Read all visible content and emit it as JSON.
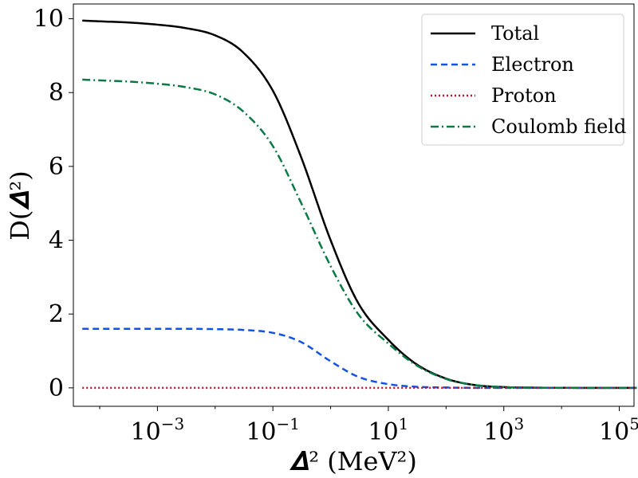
{
  "chart_data": {
    "type": "line",
    "xlabel": "𝜟² (MeV²)",
    "ylabel": "D(𝜟²)",
    "x_scale": "log",
    "xlim": [
      3.5e-05,
      180000.0
    ],
    "ylim": [
      -0.5,
      10.4
    ],
    "x_ticks": [
      {
        "value": 0.001,
        "base": "10",
        "exp": "−3"
      },
      {
        "value": 0.1,
        "base": "10",
        "exp": "−1"
      },
      {
        "value": 10,
        "base": "10",
        "exp": "1"
      },
      {
        "value": 1000,
        "base": "10",
        "exp": "3"
      },
      {
        "value": 100000,
        "base": "10",
        "exp": "5"
      }
    ],
    "y_ticks": [
      {
        "value": 0,
        "label": "0"
      },
      {
        "value": 2,
        "label": "2"
      },
      {
        "value": 4,
        "label": "4"
      },
      {
        "value": 6,
        "label": "6"
      },
      {
        "value": 8,
        "label": "8"
      },
      {
        "value": 10,
        "label": "10"
      }
    ],
    "grid": false,
    "legend_position": "top-right",
    "x": [
      5e-05,
      0.0001,
      0.0003,
      0.001,
      0.003,
      0.01,
      0.03,
      0.1,
      0.3,
      1,
      3,
      10,
      30,
      100,
      300,
      1000,
      3000,
      10000,
      100000,
      200000
    ],
    "series": [
      {
        "name": "Total",
        "color": "#000000",
        "dash": "solid",
        "values": [
          9.95,
          9.93,
          9.9,
          9.84,
          9.75,
          9.55,
          9.1,
          8.05,
          6.3,
          4.0,
          2.3,
          1.3,
          0.65,
          0.25,
          0.08,
          0.02,
          0.006,
          0.001,
          0.0,
          0.0
        ]
      },
      {
        "name": "Electron",
        "color": "#1352e8",
        "dash": "dashed",
        "values": [
          1.6,
          1.6,
          1.6,
          1.6,
          1.6,
          1.59,
          1.57,
          1.49,
          1.25,
          0.72,
          0.3,
          0.1,
          0.03,
          0.01,
          0.0,
          0.0,
          0.0,
          0.0,
          0.0,
          0.0
        ]
      },
      {
        "name": "Proton",
        "color": "#c0102a",
        "dash": "dotted",
        "values": [
          0,
          0,
          0,
          0,
          0,
          0,
          0,
          0,
          0,
          0,
          0,
          0,
          0,
          0,
          0,
          0,
          0,
          0,
          0,
          0
        ]
      },
      {
        "name": "Coulomb field",
        "color": "#0a7a45",
        "dash": "dashdot",
        "values": [
          8.35,
          8.33,
          8.3,
          8.24,
          8.15,
          7.95,
          7.5,
          6.55,
          5.05,
          3.3,
          2.0,
          1.2,
          0.62,
          0.24,
          0.08,
          0.02,
          0.006,
          0.001,
          0.0,
          0.0
        ]
      }
    ]
  }
}
